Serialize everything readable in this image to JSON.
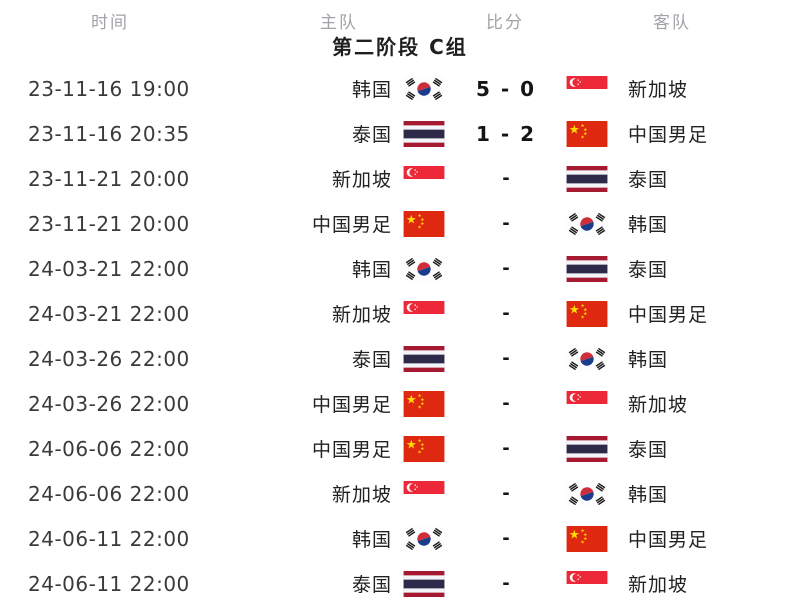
{
  "header": {
    "time": "时间",
    "home": "主队",
    "score": "比分",
    "away": "客队"
  },
  "section_title": "第二阶段 C组",
  "teams": {
    "kr": "韩国",
    "th": "泰国",
    "sg": "新加坡",
    "cn": "中国男足"
  },
  "colors": {
    "cn_red": "#de2910",
    "star_yellow": "#ffde00",
    "sg_red": "#ed2939",
    "th_red": "#a51931",
    "th_navy": "#2d2a4a",
    "th_white": "#f4f5f8",
    "kr_white": "#fdfdfd",
    "kr_red": "#cd2e3a",
    "kr_blue": "#1b3c8c",
    "kr_black": "#1a1a1a",
    "header_gray": "#a0a3a8"
  },
  "rows": [
    {
      "time": "23-11-16 19:00",
      "home": {
        "name": "韩国",
        "flag": "kr"
      },
      "score": "5 - 0",
      "away": {
        "flag": "sg",
        "name": "新加坡"
      }
    },
    {
      "time": "23-11-16 20:35",
      "home": {
        "name": "泰国",
        "flag": "th"
      },
      "score": "1 - 2",
      "away": {
        "flag": "cn",
        "name": "中国男足"
      }
    },
    {
      "time": "23-11-21 20:00",
      "home": {
        "name": "新加坡",
        "flag": "sg"
      },
      "score": "-",
      "away": {
        "flag": "th",
        "name": "泰国"
      }
    },
    {
      "time": "23-11-21 20:00",
      "home": {
        "name": "中国男足",
        "flag": "cn"
      },
      "score": "-",
      "away": {
        "flag": "kr",
        "name": "韩国"
      }
    },
    {
      "time": "24-03-21 22:00",
      "home": {
        "name": "韩国",
        "flag": "kr"
      },
      "score": "-",
      "away": {
        "flag": "th",
        "name": "泰国"
      }
    },
    {
      "time": "24-03-21 22:00",
      "home": {
        "name": "新加坡",
        "flag": "sg"
      },
      "score": "-",
      "away": {
        "flag": "cn",
        "name": "中国男足"
      }
    },
    {
      "time": "24-03-26 22:00",
      "home": {
        "name": "泰国",
        "flag": "th"
      },
      "score": "-",
      "away": {
        "flag": "kr",
        "name": "韩国"
      }
    },
    {
      "time": "24-03-26 22:00",
      "home": {
        "name": "中国男足",
        "flag": "cn"
      },
      "score": "-",
      "away": {
        "flag": "sg",
        "name": "新加坡"
      }
    },
    {
      "time": "24-06-06 22:00",
      "home": {
        "name": "中国男足",
        "flag": "cn"
      },
      "score": "-",
      "away": {
        "flag": "th",
        "name": "泰国"
      }
    },
    {
      "time": "24-06-06 22:00",
      "home": {
        "name": "新加坡",
        "flag": "sg"
      },
      "score": "-",
      "away": {
        "flag": "kr",
        "name": "韩国"
      }
    },
    {
      "time": "24-06-11 22:00",
      "home": {
        "name": "韩国",
        "flag": "kr"
      },
      "score": "-",
      "away": {
        "flag": "cn",
        "name": "中国男足"
      }
    },
    {
      "time": "24-06-11 22:00",
      "home": {
        "name": "泰国",
        "flag": "th"
      },
      "score": "-",
      "away": {
        "flag": "sg",
        "name": "新加坡"
      }
    }
  ]
}
